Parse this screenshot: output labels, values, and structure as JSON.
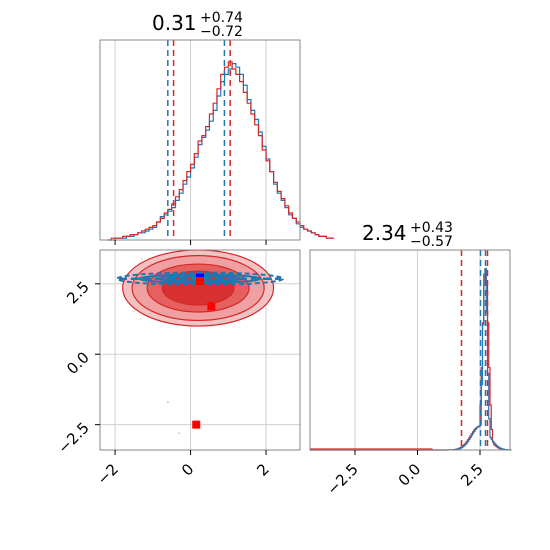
{
  "chart_data": {
    "type": "corner",
    "parameters": [
      "",
      ""
    ],
    "titles": [
      {
        "value": "0.31",
        "plus": "+0.74",
        "minus": "−0.72"
      },
      {
        "value": "2.34",
        "plus": "+0.43",
        "minus": "−0.57"
      }
    ],
    "axes": {
      "p0": {
        "range": [
          -2.4,
          2.9
        ],
        "ticks": [
          -2,
          0,
          2
        ],
        "tick_labels": [
          "−2",
          "0",
          "2"
        ]
      },
      "p1_scatter": {
        "range": [
          -3.4,
          3.7
        ],
        "ticks": [
          -2.5,
          0.0,
          2.5
        ],
        "tick_labels": [
          "−2.5",
          "0.0",
          "2.5"
        ]
      },
      "p1_hist": {
        "range": [
          -4.3,
          3.7
        ],
        "ticks": [
          -2.5,
          0.0,
          2.5
        ],
        "tick_labels": [
          "−2.5",
          "0.0",
          "2.5"
        ]
      }
    },
    "grid": true,
    "series": [
      {
        "color": "#1f77b4",
        "quantiles_p0": [
          -0.55,
          0.95
        ],
        "quantiles_p1": [
          2.52,
          2.72
        ],
        "truth": [
          0.25,
          2.72
        ]
      },
      {
        "color": "#d62728",
        "quantiles_p0": [
          -0.45,
          1.05
        ],
        "quantiles_p1": [
          1.76,
          2.8
        ],
        "truth_points": [
          [
            0.25,
            2.6
          ],
          [
            0.55,
            1.7
          ],
          [
            0.15,
            -2.5
          ]
        ]
      }
    ],
    "hist_p0": {
      "bin_start": -2.2,
      "bin_width": 0.1,
      "blue": [
        0,
        0,
        1,
        1,
        1,
        2,
        2,
        3,
        4,
        4,
        5,
        6,
        7,
        10,
        13,
        14,
        16,
        18,
        22,
        26,
        31,
        35,
        40,
        46,
        53,
        57,
        61,
        66,
        72,
        80,
        88,
        92,
        95,
        98,
        96,
        92,
        86,
        78,
        72,
        67,
        60,
        52,
        45,
        38,
        31,
        26,
        22,
        18,
        14,
        12,
        9,
        7,
        6,
        5,
        4,
        3,
        2,
        2,
        1,
        1
      ],
      "red": [
        0,
        1,
        1,
        1,
        2,
        2,
        3,
        3,
        4,
        5,
        6,
        7,
        8,
        10,
        12,
        15,
        17,
        20,
        24,
        28,
        33,
        38,
        42,
        48,
        55,
        58,
        63,
        70,
        76,
        84,
        92,
        96,
        99,
        95,
        92,
        88,
        82,
        76,
        70,
        64,
        58,
        50,
        44,
        38,
        32,
        27,
        23,
        19,
        15,
        12,
        10,
        8,
        6,
        5,
        4,
        3,
        2,
        2,
        1,
        1
      ]
    },
    "hist_p1": {
      "blue_peak": 2.68,
      "blue_width": 0.09,
      "blue_bump": 2.5,
      "red_peak": 2.7,
      "red_width": 0.12,
      "red_bump": 2.45
    }
  }
}
